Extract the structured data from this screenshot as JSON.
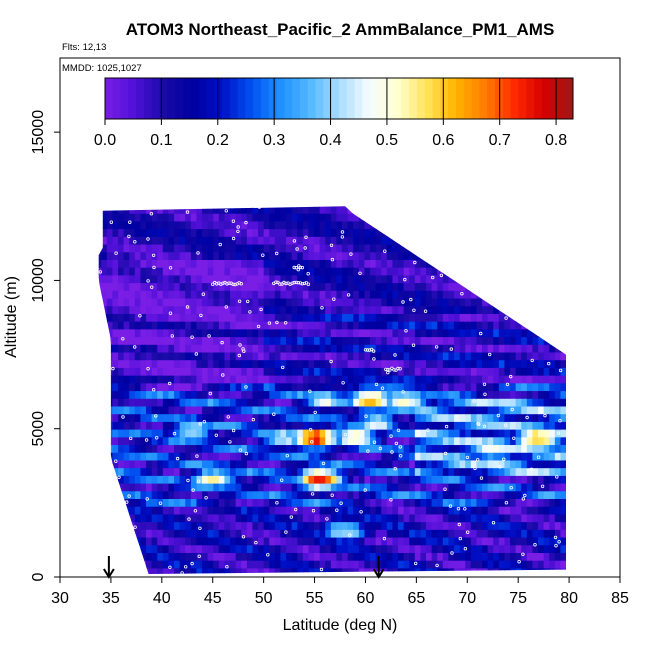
{
  "chart_data": {
    "type": "heatmap",
    "title": "ATOM3 Northeast_Pacific_2 AmmBalance_PM1_AMS",
    "subtitle_flights": "Flts: 12,13",
    "subtitle_dates": "MMDD: 1025,1027",
    "xlabel": "Latitude (deg N)",
    "ylabel": "Altitude (m)",
    "xlim": [
      30,
      85
    ],
    "ylim": [
      0,
      17500
    ],
    "xticks": [
      "30",
      "35",
      "40",
      "45",
      "50",
      "55",
      "60",
      "65",
      "70",
      "75",
      "80",
      "85"
    ],
    "yticks": [
      "0",
      "5000",
      "10000",
      "15000"
    ],
    "colorbar": {
      "range": [
        0,
        0.83
      ],
      "ticks": [
        "0.0",
        "0.1",
        "0.2",
        "0.3",
        "0.4",
        "0.5",
        "0.6",
        "0.7",
        "0.8"
      ],
      "colors": [
        "#7a1ee6",
        "#5010d8",
        "#1a0aa8",
        "#0000a0",
        "#0010c8",
        "#0050f0",
        "#1e90ff",
        "#52b8ff",
        "#a8dcff",
        "#f4fbff",
        "#ffffd0",
        "#ffe45a",
        "#ffb300",
        "#ff7c00",
        "#ff2a00",
        "#d40000",
        "#9e1818"
      ]
    },
    "flight_markers_latitude": [
      34.8,
      61.3
    ],
    "altitude_range_m": [
      100,
      12500
    ],
    "latitude_range": [
      35,
      80
    ],
    "hotspots": [
      {
        "lat": 45,
        "alt": 3300,
        "value": 0.55
      },
      {
        "lat": 55.5,
        "alt": 3300,
        "value": 0.75
      },
      {
        "lat": 55,
        "alt": 4700,
        "value": 0.78
      },
      {
        "lat": 59,
        "alt": 4700,
        "value": 0.55
      },
      {
        "lat": 61,
        "alt": 5200,
        "value": 0.5
      },
      {
        "lat": 60.5,
        "alt": 6000,
        "value": 0.7
      },
      {
        "lat": 64,
        "alt": 6000,
        "value": 0.55
      },
      {
        "lat": 56,
        "alt": 6000,
        "value": 0.5
      },
      {
        "lat": 77,
        "alt": 4700,
        "value": 0.65
      },
      {
        "lat": 52,
        "alt": 4700,
        "value": 0.45
      },
      {
        "lat": 43,
        "alt": 5000,
        "value": 0.45
      },
      {
        "lat": 58,
        "alt": 1600,
        "value": 0.45
      },
      {
        "lat": 72.5,
        "alt": 4300,
        "value": 0.5
      }
    ]
  }
}
